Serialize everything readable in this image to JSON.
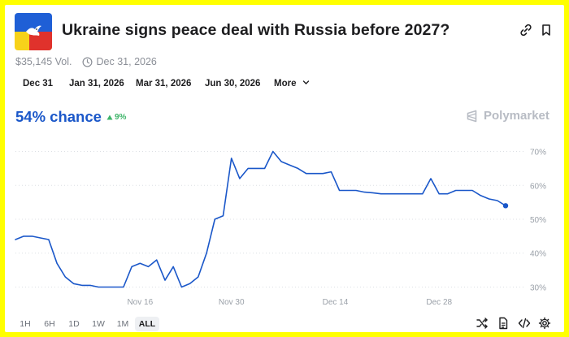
{
  "market": {
    "title": "Ukraine signs peace deal with Russia before 2027?",
    "volume": "$35,145 Vol.",
    "end_date": "Dec 31, 2026"
  },
  "date_tabs": [
    "Dec 31",
    "Jan 31, 2026",
    "Mar 31, 2026",
    "Jun 30, 2026",
    "More"
  ],
  "probability": {
    "chance_text": "54% chance",
    "change_text": "9%",
    "change_direction": "up",
    "line_color": "#1a57c9",
    "positive_color": "#3fb56a"
  },
  "brand": {
    "name": "Polymarket"
  },
  "timeframes": [
    "1H",
    "6H",
    "1D",
    "1W",
    "1M",
    "ALL"
  ],
  "active_timeframe": "ALL",
  "icons": {
    "header": [
      "link-icon",
      "bookmark-icon"
    ],
    "toolbar": [
      "shuffle-icon",
      "document-icon",
      "code-icon",
      "settings-icon"
    ]
  },
  "chart_data": {
    "type": "line",
    "x_tick_labels": [
      "Nov 16",
      "Nov 30",
      "Dec 14",
      "Dec 28"
    ],
    "y_tick_labels": [
      "70%",
      "60%",
      "50%",
      "40%",
      "30%"
    ],
    "ylim": [
      27,
      73
    ],
    "grid": true,
    "series": [
      {
        "x": [
          0,
          1,
          2,
          3,
          4,
          5,
          6,
          7,
          8,
          9,
          10,
          11,
          12,
          13,
          14,
          15,
          16,
          17,
          18,
          19,
          20,
          21,
          22,
          23,
          24,
          25,
          26,
          27,
          28,
          29,
          30,
          31,
          32,
          33,
          34,
          35,
          36,
          37,
          38,
          39,
          40,
          41,
          42,
          43,
          44,
          45,
          46,
          47,
          48,
          49,
          50,
          51,
          52,
          53,
          54,
          55,
          56,
          57,
          58,
          59
        ],
        "values": [
          44,
          45,
          45,
          44.5,
          44,
          37,
          33,
          31,
          30.5,
          30.5,
          30,
          30,
          30,
          30,
          36,
          37,
          36,
          38,
          32,
          36,
          30,
          31,
          33,
          40,
          50,
          51,
          68,
          62,
          65,
          65,
          65,
          70,
          67,
          66,
          65,
          63.5,
          63.5,
          63.5,
          64,
          58.5,
          58.5,
          58.5,
          58,
          57.8,
          57.5,
          57.5,
          57.5,
          57.5,
          57.5,
          57.5,
          62,
          57.5,
          57.5,
          58.5,
          58.5,
          58.5,
          57,
          56,
          55.5,
          54
        ]
      }
    ]
  }
}
